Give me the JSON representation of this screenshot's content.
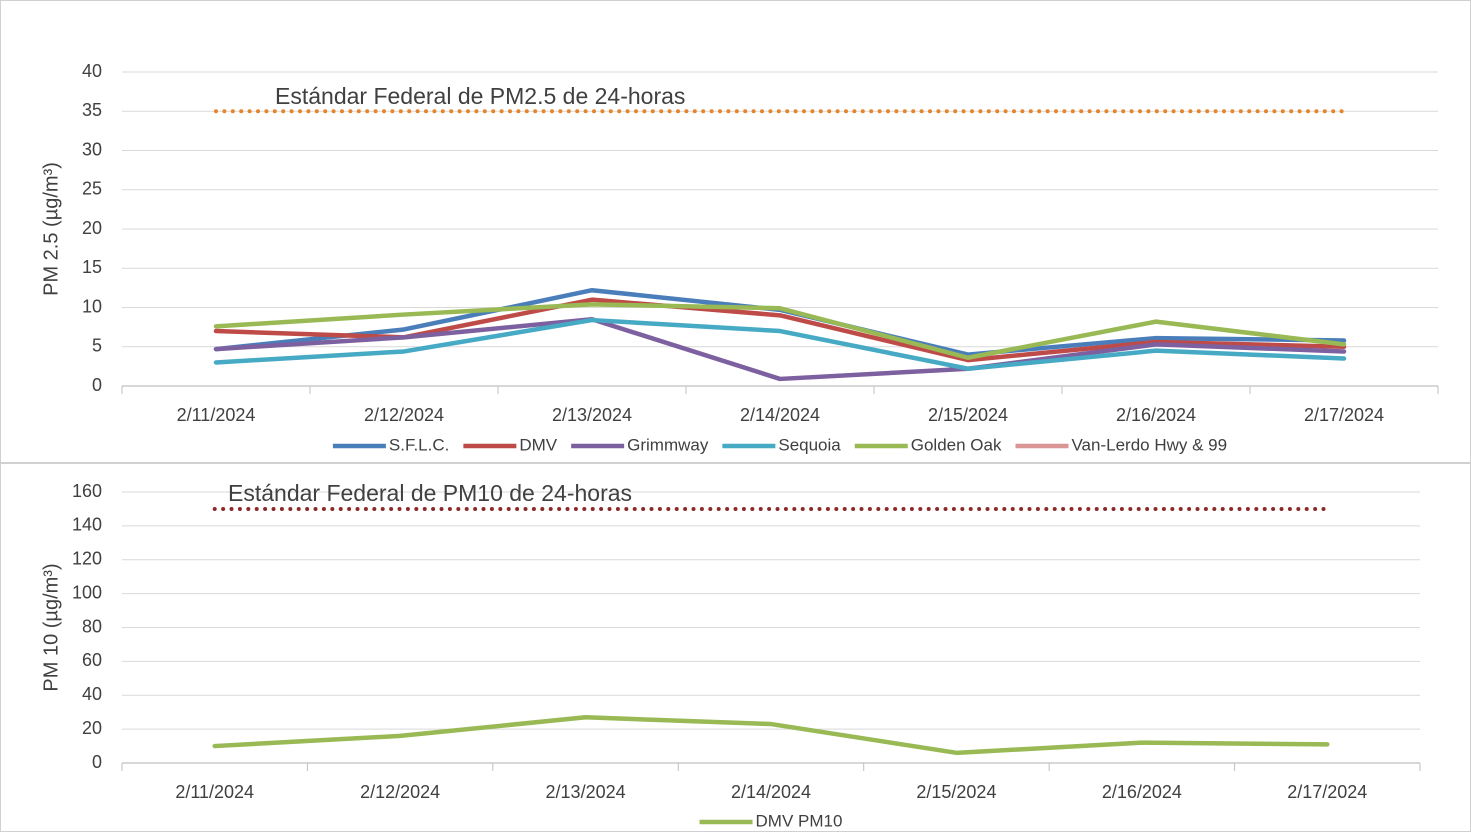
{
  "chart_data": [
    {
      "type": "line",
      "y_label": "PM 2.5 (µg/m³)",
      "categories": [
        "2/11/2024",
        "2/12/2024",
        "2/13/2024",
        "2/14/2024",
        "2/15/2024",
        "2/16/2024",
        "2/17/2024"
      ],
      "series": [
        {
          "name": "S.F.L.C.",
          "color": "#4a7ebb",
          "values": [
            4.7,
            7.2,
            12.2,
            9.7,
            4.0,
            6.1,
            5.8
          ]
        },
        {
          "name": "DMV",
          "color": "#be4b48",
          "values": [
            7.0,
            6.2,
            11.0,
            9.0,
            3.3,
            5.6,
            5.0
          ]
        },
        {
          "name": "Grimmway",
          "color": "#7d60a0",
          "values": [
            4.7,
            6.2,
            8.5,
            0.9,
            2.2,
            5.3,
            4.4
          ]
        },
        {
          "name": "Sequoia",
          "color": "#46aac5",
          "values": [
            3.0,
            4.4,
            8.4,
            7.0,
            2.2,
            4.5,
            3.5
          ]
        },
        {
          "name": "Golden Oak",
          "color": "#98b954",
          "values": [
            7.6,
            9.1,
            10.4,
            9.9,
            3.6,
            8.2,
            5.3
          ]
        },
        {
          "name": "Van-Lerdo Hwy & 99",
          "color": "#d99694",
          "values": [
            null,
            null,
            null,
            null,
            null,
            null,
            null
          ]
        }
      ],
      "reference_line": {
        "label": "Estándar Federal de PM2.5 de 24-horas",
        "value": 35,
        "color": "#e6842a"
      },
      "ylim": [
        0,
        40
      ],
      "yticks": [
        0,
        5,
        10,
        15,
        20,
        25,
        30,
        35,
        40
      ],
      "grid": true
    },
    {
      "type": "line",
      "y_label": "PM 10 (µg/m³)",
      "categories": [
        "2/11/2024",
        "2/12/2024",
        "2/13/2024",
        "2/14/2024",
        "2/15/2024",
        "2/16/2024",
        "2/17/2024"
      ],
      "series": [
        {
          "name": "DMV PM10",
          "color": "#98b954",
          "values": [
            10,
            16,
            27,
            23,
            6,
            12,
            11
          ]
        }
      ],
      "reference_line": {
        "label": "Estándar Federal de PM10 de 24-horas",
        "value": 150,
        "color": "#8b2a2a"
      },
      "ylim": [
        0,
        160
      ],
      "yticks": [
        0,
        20,
        40,
        60,
        80,
        100,
        120,
        140,
        160
      ],
      "grid": true
    }
  ]
}
